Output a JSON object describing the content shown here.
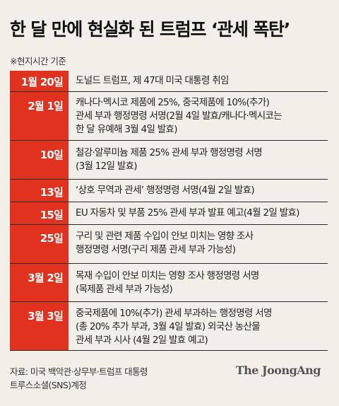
{
  "title": "한 달 만에 현실화 된 트럼프 ‘관세 폭탄’",
  "note": "※현지시간 기준",
  "rows": [
    {
      "date": "1월 20일",
      "lines": [
        "도널드 트럼프, 제 47대 미국 대통령 취임"
      ]
    },
    {
      "date": "2월 1일",
      "lines": [
        "캐나다·멕시코 제품에 25%, 중국제품에 10%(추가)",
        "관세 부과 행정명령 서명(2월 4일 발효/캐나다·멕시코는",
        "한 달 유예해 3월 4일 발효)"
      ]
    },
    {
      "date": "10일",
      "lines": [
        "철강·알루미늄 제품 25% 관세 부과 행정명령 서명",
        "(3월 12일 발효)"
      ]
    },
    {
      "date": "13일",
      "lines": [
        "‘상호 무역과 관세’ 행정명령 서명(4월 2일 발효)"
      ]
    },
    {
      "date": "15일",
      "lines": [
        "EU 자동차 및 부품 25% 관세 부과 발표 예고(4월 2일 발효)"
      ]
    },
    {
      "date": "25일",
      "lines": [
        "구리 및 관련 제품 수입이 안보 미치는 영향 조사",
        "행정명령 서명(구리 제품 관세 부과 가능성)"
      ]
    },
    {
      "date": "3월 2일",
      "lines": [
        "목재 수입이 안보 미치는 영향 조사 행정명령 서명",
        "(목제품 관세 부과 가능성)"
      ]
    },
    {
      "date": "3월 3일",
      "lines": [
        "중국제품에 10%(추가) 관세 부과하는 행정명령 서명",
        "(총 20% 추가 부과, 3월 4일 발효) 외국산 농산물",
        "관세 부과 시사 (4월 2일 발효 예고)"
      ]
    }
  ],
  "source": [
    "자료: 미국 백악관·상무부·트럼프 대통령",
    "트루스소셜(SNS)계정"
  ],
  "brand": "The JoongAng",
  "colors": {
    "accent": "#e0321f",
    "background": "#f2efe9"
  }
}
